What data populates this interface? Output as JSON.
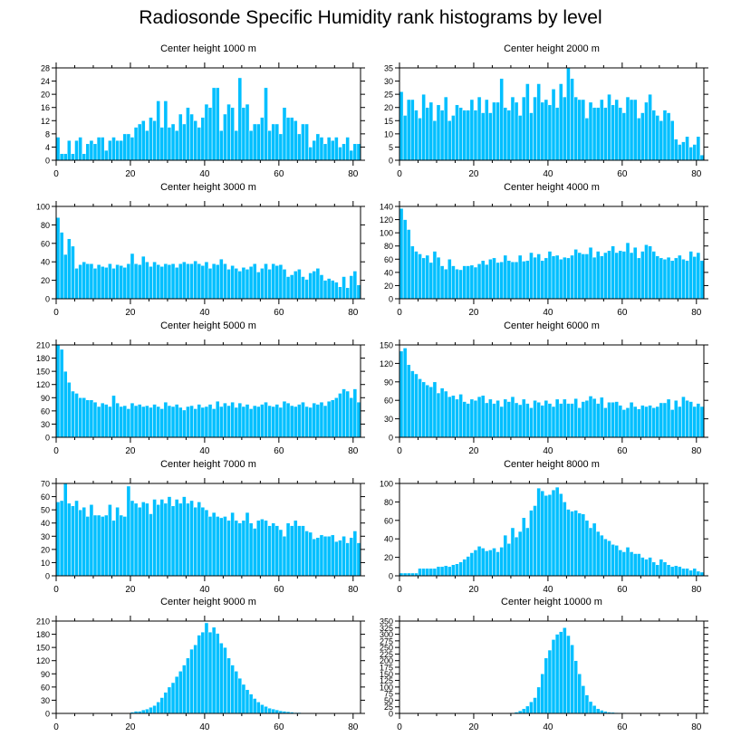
{
  "title": "Radiosonde Specific Humidity rank histograms by level",
  "style": {
    "bar_color": "#00bfff",
    "bar_edge": "#ffffff",
    "axis_color": "#000000"
  },
  "chart_data": [
    {
      "type": "bar",
      "title": "Center height 1000 m",
      "xlim": [
        0,
        82
      ],
      "ylim": [
        0,
        28
      ],
      "yticks": [
        0,
        4,
        8,
        12,
        16,
        20,
        24,
        28
      ],
      "xticks": [
        0,
        20,
        40,
        60,
        80
      ],
      "values": [
        7,
        2,
        2,
        6,
        2,
        6,
        7,
        2,
        5,
        6,
        5,
        7,
        7,
        3,
        6,
        7,
        6,
        6,
        8,
        8,
        7,
        10,
        11,
        12,
        9,
        13,
        12,
        18,
        10,
        18,
        10,
        11,
        9,
        14,
        11,
        16,
        14,
        12,
        10,
        13,
        17,
        16,
        22,
        22,
        9,
        14,
        17,
        16,
        9,
        25,
        16,
        17,
        9,
        11,
        11,
        13,
        22,
        9,
        11,
        11,
        8,
        16,
        13,
        13,
        12,
        8,
        11,
        11,
        4,
        6,
        8,
        7,
        5,
        7,
        6,
        7,
        4,
        5,
        7,
        3,
        5,
        5
      ]
    },
    {
      "type": "bar",
      "title": "Center height 2000 m",
      "xlim": [
        0,
        82
      ],
      "ylim": [
        0,
        35
      ],
      "yticks": [
        0,
        5,
        10,
        15,
        20,
        25,
        30,
        35
      ],
      "xticks": [
        0,
        20,
        40,
        60,
        80
      ],
      "values": [
        26,
        17,
        23,
        23,
        19,
        16,
        25,
        20,
        22,
        15,
        21,
        19,
        24,
        15,
        17,
        21,
        20,
        19,
        19,
        23,
        19,
        24,
        18,
        23,
        18,
        22,
        22,
        31,
        20,
        19,
        24,
        22,
        17,
        24,
        29,
        18,
        24,
        29,
        22,
        23,
        21,
        27,
        20,
        29,
        24,
        35,
        31,
        24,
        23,
        23,
        16,
        22,
        20,
        20,
        23,
        20,
        25,
        21,
        23,
        20,
        18,
        24,
        23,
        23,
        16,
        18,
        22,
        25,
        19,
        17,
        15,
        19,
        18,
        15,
        8,
        6,
        7,
        9,
        5,
        6,
        9,
        2
      ]
    },
    {
      "type": "bar",
      "title": "Center height 3000 m",
      "xlim": [
        0,
        82
      ],
      "ylim": [
        0,
        100
      ],
      "yticks": [
        0,
        20,
        40,
        60,
        80,
        100
      ],
      "xticks": [
        0,
        20,
        40,
        60,
        80
      ],
      "values": [
        88,
        72,
        48,
        65,
        57,
        33,
        37,
        40,
        38,
        38,
        33,
        37,
        35,
        34,
        38,
        33,
        37,
        36,
        34,
        38,
        49,
        38,
        37,
        46,
        40,
        35,
        40,
        37,
        35,
        38,
        37,
        38,
        34,
        38,
        40,
        38,
        38,
        41,
        38,
        36,
        40,
        33,
        38,
        37,
        43,
        38,
        32,
        36,
        33,
        30,
        34,
        32,
        35,
        38,
        29,
        33,
        38,
        32,
        38,
        36,
        37,
        32,
        24,
        26,
        30,
        32,
        24,
        21,
        28,
        30,
        33,
        26,
        20,
        22,
        20,
        18,
        13,
        24,
        12,
        25,
        30,
        15
      ]
    },
    {
      "type": "bar",
      "title": "Center height 4000 m",
      "xlim": [
        0,
        82
      ],
      "ylim": [
        0,
        140
      ],
      "yticks": [
        0,
        20,
        40,
        60,
        80,
        100,
        120,
        140
      ],
      "xticks": [
        0,
        20,
        40,
        60,
        80
      ],
      "values": [
        137,
        120,
        105,
        80,
        72,
        68,
        62,
        66,
        55,
        72,
        63,
        50,
        45,
        60,
        50,
        45,
        44,
        50,
        50,
        51,
        48,
        53,
        58,
        52,
        60,
        62,
        55,
        56,
        66,
        58,
        56,
        56,
        66,
        57,
        58,
        70,
        63,
        68,
        58,
        62,
        72,
        65,
        66,
        60,
        63,
        62,
        66,
        75,
        70,
        68,
        68,
        78,
        63,
        72,
        65,
        70,
        73,
        80,
        70,
        73,
        72,
        85,
        70,
        78,
        62,
        72,
        82,
        80,
        72,
        65,
        62,
        60,
        63,
        58,
        62,
        66,
        60,
        58,
        72,
        64,
        70,
        58
      ]
    },
    {
      "type": "bar",
      "title": "Center height 5000 m",
      "xlim": [
        0,
        82
      ],
      "ylim": [
        0,
        210
      ],
      "yticks": [
        0,
        30,
        60,
        90,
        120,
        150,
        180,
        210
      ],
      "xticks": [
        0,
        20,
        40,
        60,
        80
      ],
      "values": [
        210,
        200,
        150,
        125,
        105,
        100,
        90,
        90,
        85,
        85,
        80,
        70,
        78,
        75,
        70,
        95,
        78,
        70,
        72,
        65,
        78,
        72,
        75,
        70,
        72,
        68,
        75,
        70,
        65,
        80,
        72,
        70,
        75,
        68,
        62,
        70,
        72,
        65,
        75,
        68,
        70,
        75,
        65,
        82,
        70,
        78,
        72,
        80,
        68,
        78,
        70,
        75,
        65,
        72,
        70,
        75,
        80,
        72,
        70,
        75,
        68,
        82,
        78,
        72,
        70,
        75,
        80,
        70,
        68,
        78,
        75,
        80,
        72,
        82,
        85,
        90,
        100,
        110,
        105,
        90,
        110,
        80
      ]
    },
    {
      "type": "bar",
      "title": "Center height 6000 m",
      "xlim": [
        0,
        82
      ],
      "ylim": [
        0,
        150
      ],
      "yticks": [
        0,
        30,
        60,
        90,
        120,
        150
      ],
      "xticks": [
        0,
        20,
        40,
        60,
        80
      ],
      "values": [
        140,
        145,
        118,
        108,
        103,
        95,
        90,
        85,
        82,
        90,
        72,
        80,
        75,
        66,
        68,
        62,
        70,
        58,
        55,
        62,
        60,
        66,
        68,
        56,
        62,
        55,
        60,
        50,
        62,
        58,
        66,
        56,
        53,
        62,
        55,
        48,
        60,
        57,
        52,
        60,
        55,
        50,
        62,
        55,
        62,
        55,
        55,
        63,
        48,
        58,
        60,
        67,
        63,
        55,
        65,
        48,
        57,
        57,
        58,
        52,
        45,
        48,
        57,
        50,
        46,
        52,
        50,
        52,
        48,
        50,
        56,
        56,
        62,
        45,
        60,
        50,
        66,
        60,
        58,
        50,
        55,
        50
      ]
    },
    {
      "type": "bar",
      "title": "Center height 7000 m",
      "xlim": [
        0,
        82
      ],
      "ylim": [
        0,
        70
      ],
      "yticks": [
        0,
        10,
        20,
        30,
        40,
        50,
        60,
        70
      ],
      "xticks": [
        0,
        20,
        40,
        60,
        80
      ],
      "values": [
        56,
        57,
        70,
        55,
        53,
        57,
        50,
        52,
        45,
        54,
        46,
        46,
        45,
        46,
        54,
        42,
        52,
        46,
        45,
        68,
        57,
        55,
        52,
        56,
        55,
        47,
        58,
        54,
        58,
        55,
        60,
        53,
        58,
        55,
        60,
        55,
        57,
        52,
        56,
        52,
        50,
        45,
        48,
        45,
        44,
        45,
        42,
        48,
        42,
        40,
        42,
        48,
        40,
        36,
        42,
        43,
        42,
        38,
        40,
        38,
        35,
        30,
        40,
        38,
        42,
        38,
        38,
        34,
        33,
        28,
        29,
        31,
        30,
        30,
        31,
        26,
        27,
        30,
        25,
        29,
        34,
        25
      ]
    },
    {
      "type": "bar",
      "title": "Center height 8000 m",
      "xlim": [
        0,
        82
      ],
      "ylim": [
        0,
        100
      ],
      "yticks": [
        0,
        20,
        40,
        60,
        80,
        100
      ],
      "xticks": [
        0,
        20,
        40,
        60,
        80
      ],
      "values": [
        3,
        3,
        3,
        3,
        3,
        8,
        8,
        8,
        8,
        8,
        10,
        10,
        11,
        10,
        12,
        13,
        15,
        18,
        21,
        25,
        28,
        32,
        30,
        27,
        28,
        30,
        26,
        31,
        44,
        35,
        52,
        42,
        48,
        63,
        52,
        71,
        76,
        95,
        92,
        87,
        88,
        93,
        96,
        89,
        80,
        72,
        70,
        71,
        68,
        67,
        60,
        52,
        57,
        48,
        44,
        40,
        38,
        34,
        33,
        28,
        26,
        31,
        26,
        24,
        24,
        20,
        18,
        20,
        15,
        12,
        18,
        15,
        12,
        10,
        11,
        10,
        8,
        8,
        6,
        8,
        5,
        4
      ]
    },
    {
      "type": "bar",
      "title": "Center height 9000 m",
      "xlim": [
        0,
        82
      ],
      "ylim": [
        0,
        210
      ],
      "yticks": [
        0,
        30,
        60,
        90,
        120,
        150,
        180,
        210
      ],
      "xticks": [
        0,
        20,
        40,
        60,
        80
      ],
      "values": [
        0,
        0,
        0,
        0,
        0,
        0,
        0,
        0,
        0,
        0,
        0,
        0,
        0,
        0,
        0,
        0,
        0,
        0,
        0,
        0,
        3,
        5,
        5,
        8,
        10,
        14,
        18,
        26,
        36,
        48,
        60,
        70,
        84,
        96,
        110,
        126,
        146,
        156,
        178,
        185,
        206,
        185,
        196,
        182,
        160,
        150,
        126,
        110,
        96,
        80,
        66,
        54,
        44,
        34,
        26,
        20,
        16,
        12,
        10,
        8,
        6,
        5,
        4,
        3,
        2,
        2,
        1,
        1,
        0,
        0,
        0,
        0,
        0,
        0,
        0,
        0,
        0,
        0,
        0,
        0,
        0,
        0
      ]
    },
    {
      "type": "bar",
      "title": "Center height 10000 m",
      "xlim": [
        0,
        82
      ],
      "ylim": [
        0,
        350
      ],
      "yticks": [
        0,
        25,
        50,
        75,
        100,
        125,
        150,
        175,
        200,
        225,
        250,
        275,
        300,
        325,
        350
      ],
      "xticks": [
        0,
        20,
        40,
        60,
        80
      ],
      "values": [
        0,
        0,
        0,
        0,
        0,
        0,
        0,
        0,
        0,
        0,
        0,
        0,
        0,
        0,
        0,
        0,
        0,
        0,
        0,
        0,
        0,
        0,
        0,
        0,
        0,
        0,
        0,
        0,
        0,
        1,
        2,
        5,
        10,
        18,
        28,
        44,
        60,
        100,
        150,
        210,
        240,
        280,
        300,
        310,
        325,
        295,
        260,
        200,
        150,
        105,
        70,
        45,
        30,
        18,
        12,
        8,
        5,
        4,
        3,
        2,
        2,
        1,
        1,
        1,
        1,
        1,
        1,
        0,
        0,
        0,
        0,
        0,
        0,
        0,
        0,
        0,
        0,
        0,
        0,
        0,
        0,
        0
      ]
    }
  ]
}
